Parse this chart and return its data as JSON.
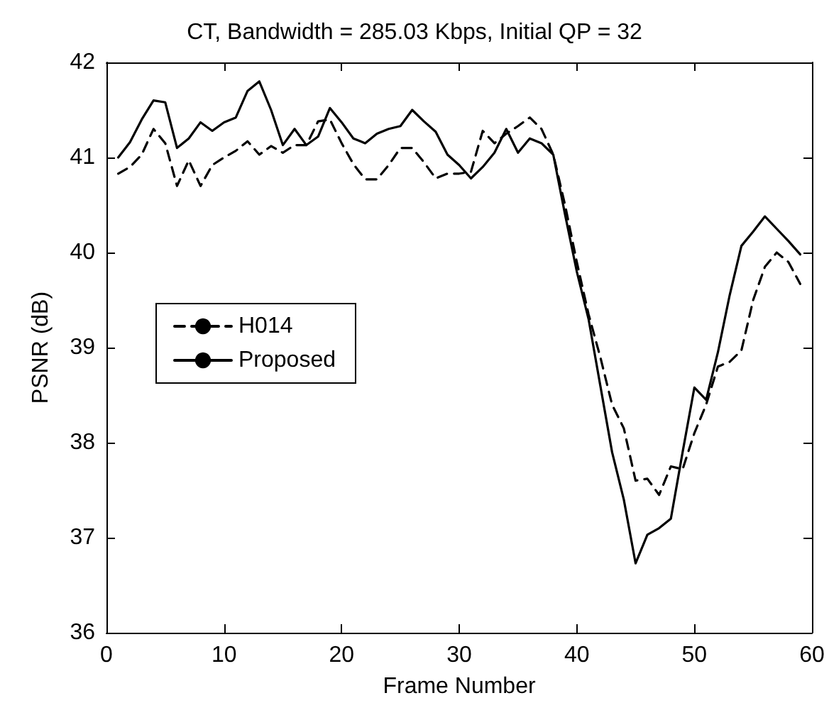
{
  "chart_data": {
    "type": "line",
    "title": "CT, Bandwidth = 285.03 Kbps, Initial QP = 32",
    "xlabel": "Frame Number",
    "ylabel": "PSNR (dB)",
    "x": [
      1,
      2,
      3,
      4,
      5,
      6,
      7,
      8,
      9,
      10,
      11,
      12,
      13,
      14,
      15,
      16,
      17,
      18,
      19,
      20,
      21,
      22,
      23,
      24,
      25,
      26,
      27,
      28,
      29,
      30,
      31,
      32,
      33,
      34,
      35,
      36,
      37,
      38,
      39,
      40,
      41,
      42,
      43,
      44,
      45,
      46,
      47,
      48,
      49,
      50,
      51,
      52,
      53,
      54,
      55,
      56,
      57,
      58,
      59
    ],
    "series": [
      {
        "name": "H014",
        "color": "#000000",
        "line_style": "dashed",
        "values": [
          40.83,
          40.9,
          41.03,
          41.3,
          41.15,
          40.7,
          40.97,
          40.7,
          40.92,
          41.0,
          41.07,
          41.17,
          41.03,
          41.12,
          41.05,
          41.13,
          41.13,
          41.38,
          41.4,
          41.15,
          40.93,
          40.77,
          40.77,
          40.92,
          41.1,
          41.1,
          40.95,
          40.78,
          40.83,
          40.83,
          40.85,
          41.28,
          41.15,
          41.25,
          41.33,
          41.42,
          41.3,
          41.03,
          40.5,
          39.9,
          39.35,
          38.9,
          38.4,
          38.15,
          37.6,
          37.62,
          37.45,
          37.75,
          37.72,
          38.1,
          38.4,
          38.8,
          38.85,
          38.97,
          39.5,
          39.85,
          40.0,
          39.9,
          39.67
        ]
      },
      {
        "name": "Proposed",
        "color": "#000000",
        "line_style": "solid",
        "values": [
          41.0,
          41.16,
          41.4,
          41.6,
          41.58,
          41.1,
          41.2,
          41.37,
          41.28,
          41.37,
          41.42,
          41.7,
          41.8,
          41.5,
          41.13,
          41.3,
          41.13,
          41.22,
          41.52,
          41.37,
          41.2,
          41.15,
          41.25,
          41.3,
          41.33,
          41.5,
          41.38,
          41.27,
          41.03,
          40.92,
          40.78,
          40.9,
          41.05,
          41.3,
          41.05,
          41.2,
          41.15,
          41.03,
          40.4,
          39.8,
          39.3,
          38.6,
          37.9,
          37.4,
          36.73,
          37.03,
          37.1,
          37.2,
          37.9,
          38.58,
          38.45,
          38.95,
          39.55,
          40.07,
          40.22,
          40.38,
          40.25,
          40.12,
          39.98
        ]
      }
    ],
    "xlim": [
      0,
      60
    ],
    "xticks": [
      0,
      10,
      20,
      30,
      40,
      50,
      60
    ],
    "ylim": [
      36,
      42
    ],
    "yticks": [
      36,
      37,
      38,
      39,
      40,
      41,
      42
    ],
    "grid": false,
    "legend": "left",
    "marker": "none"
  }
}
